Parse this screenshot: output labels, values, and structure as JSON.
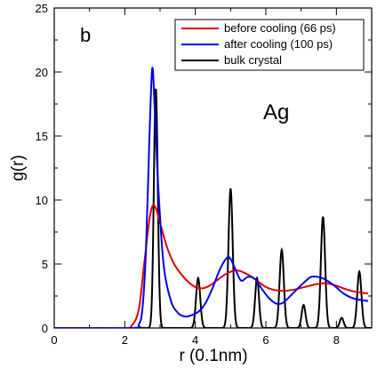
{
  "chart_data": {
    "type": "line",
    "xlabel": "r (0.1nm)",
    "ylabel": "g(r)",
    "xlim": [
      0,
      9
    ],
    "ylim": [
      0,
      25
    ],
    "x_ticks": [
      0,
      2,
      4,
      6,
      8
    ],
    "y_ticks": [
      0,
      5,
      10,
      15,
      20,
      25
    ],
    "grid": false,
    "legend_position": "top-right",
    "annotations": [
      "b",
      "Ag"
    ],
    "series": [
      {
        "name": "before cooling (66 ps)",
        "color": "#e00000",
        "points": [
          [
            0,
            0
          ],
          [
            1.9,
            0
          ],
          [
            2.2,
            0.2
          ],
          [
            2.4,
            1.5
          ],
          [
            2.55,
            5.0
          ],
          [
            2.7,
            8.5
          ],
          [
            2.8,
            9.6
          ],
          [
            2.9,
            9.2
          ],
          [
            3.0,
            8.2
          ],
          [
            3.2,
            6.3
          ],
          [
            3.4,
            5.0
          ],
          [
            3.6,
            4.2
          ],
          [
            3.8,
            3.6
          ],
          [
            4.0,
            3.2
          ],
          [
            4.2,
            3.1
          ],
          [
            4.4,
            3.3
          ],
          [
            4.6,
            3.7
          ],
          [
            4.8,
            4.1
          ],
          [
            5.0,
            4.4
          ],
          [
            5.2,
            4.5
          ],
          [
            5.4,
            4.3
          ],
          [
            5.6,
            4.0
          ],
          [
            5.8,
            3.6
          ],
          [
            6.0,
            3.2
          ],
          [
            6.2,
            3.0
          ],
          [
            6.5,
            2.9
          ],
          [
            6.8,
            3.0
          ],
          [
            7.1,
            3.2
          ],
          [
            7.4,
            3.4
          ],
          [
            7.7,
            3.5
          ],
          [
            8.0,
            3.3
          ],
          [
            8.3,
            3.0
          ],
          [
            8.6,
            2.8
          ],
          [
            8.9,
            2.7
          ]
        ]
      },
      {
        "name": "after cooling (100 ps)",
        "color": "#0000ee",
        "points": [
          [
            0,
            0
          ],
          [
            2.2,
            0
          ],
          [
            2.4,
            0.3
          ],
          [
            2.5,
            1.5
          ],
          [
            2.6,
            6.0
          ],
          [
            2.7,
            15.0
          ],
          [
            2.78,
            20.3
          ],
          [
            2.85,
            17.0
          ],
          [
            2.95,
            11.0
          ],
          [
            3.1,
            5.0
          ],
          [
            3.3,
            2.2
          ],
          [
            3.5,
            1.2
          ],
          [
            3.7,
            0.9
          ],
          [
            3.9,
            1.0
          ],
          [
            4.1,
            1.3
          ],
          [
            4.3,
            2.0
          ],
          [
            4.5,
            3.2
          ],
          [
            4.7,
            4.6
          ],
          [
            4.9,
            5.5
          ],
          [
            5.0,
            5.4
          ],
          [
            5.15,
            4.5
          ],
          [
            5.3,
            3.7
          ],
          [
            5.5,
            4.0
          ],
          [
            5.7,
            3.8
          ],
          [
            5.9,
            3.0
          ],
          [
            6.1,
            2.3
          ],
          [
            6.3,
            1.9
          ],
          [
            6.5,
            2.0
          ],
          [
            6.8,
            2.8
          ],
          [
            7.1,
            3.6
          ],
          [
            7.3,
            4.0
          ],
          [
            7.6,
            3.9
          ],
          [
            7.9,
            3.4
          ],
          [
            8.2,
            2.7
          ],
          [
            8.5,
            2.3
          ],
          [
            8.9,
            2.1
          ]
        ]
      },
      {
        "name": "bulk crystal",
        "color": "#000000",
        "peaks": [
          [
            2.88,
            18.7,
            0.055
          ],
          [
            4.08,
            3.9,
            0.06
          ],
          [
            5.0,
            10.9,
            0.06
          ],
          [
            5.75,
            3.9,
            0.055
          ],
          [
            6.45,
            6.1,
            0.06
          ],
          [
            7.07,
            1.8,
            0.055
          ],
          [
            7.62,
            8.7,
            0.06
          ],
          [
            8.15,
            0.8,
            0.055
          ],
          [
            8.65,
            4.4,
            0.06
          ]
        ]
      }
    ]
  }
}
